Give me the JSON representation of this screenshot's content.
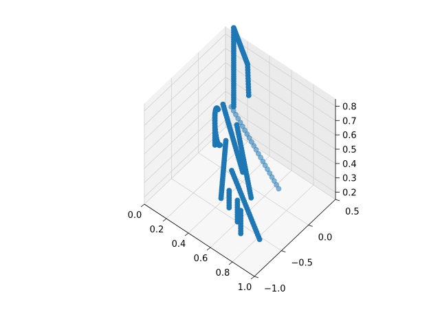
{
  "chart_data": {
    "type": "scatter",
    "projection": "3d",
    "title": "",
    "xlabel": "",
    "ylabel": "",
    "zlabel": "",
    "xlim": [
      0.0,
      1.0
    ],
    "ylim": [
      -1.0,
      0.5
    ],
    "zlim": [
      0.15,
      0.85
    ],
    "x_ticks": [
      "0.0",
      "0.2",
      "0.4",
      "0.6",
      "0.8",
      "1.0"
    ],
    "y_ticks": [
      "−1.0",
      "−0.5",
      "0.0",
      "0.5"
    ],
    "z_ticks": [
      "0.2",
      "0.3",
      "0.4",
      "0.5",
      "0.6",
      "0.7",
      "0.8"
    ],
    "grid": true,
    "marker_color": "#1f77b4",
    "series": [
      {
        "segments": [
          {
            "from": [
              0.05,
              0.55,
              0.85
            ],
            "to": [
              0.25,
              0.4,
              0.75
            ],
            "n": 30
          },
          {
            "from": [
              0.05,
              0.55,
              0.85
            ],
            "to": [
              0.05,
              0.55,
              0.3
            ],
            "n": 35
          },
          {
            "from": [
              0.25,
              0.4,
              0.75
            ],
            "to": [
              0.27,
              0.38,
              0.55
            ],
            "n": 12
          },
          {
            "from": [
              0.2,
              0.1,
              0.3
            ],
            "to": [
              0.5,
              -0.6,
              0.3
            ],
            "n": 30
          },
          {
            "from": [
              0.1,
              0.25,
              0.45
            ],
            "to": [
              0.55,
              -0.3,
              0.4
            ],
            "n": 32
          },
          {
            "from": [
              0.25,
              0.2,
              0.4
            ],
            "to": [
              0.7,
              -0.45,
              0.35
            ],
            "n": 32
          },
          {
            "from": [
              0.4,
              -0.2,
              0.3
            ],
            "to": [
              0.9,
              -0.7,
              0.25
            ],
            "n": 30
          },
          {
            "from": [
              0.15,
              0.0,
              0.5
            ],
            "to": [
              0.15,
              0.0,
              0.28
            ],
            "n": 14
          },
          {
            "from": [
              0.6,
              -0.5,
              0.3
            ],
            "to": [
              0.6,
              -0.5,
              0.15
            ],
            "n": 10
          },
          {
            "from": [
              0.66,
              -0.56,
              0.28
            ],
            "to": [
              0.66,
              -0.56,
              0.12
            ],
            "n": 10
          },
          {
            "from": [
              0.5,
              -0.45,
              0.3
            ],
            "to": [
              0.5,
              -0.45,
              0.18
            ],
            "n": 8
          }
        ],
        "arc": {
          "center": [
            0.12,
            0.12,
            0.35
          ],
          "radius": 0.12,
          "n": 24
        },
        "faint_line": {
          "from": [
            0.2,
            0.2,
            0.5
          ],
          "to": [
            1.0,
            -0.55,
            0.6
          ],
          "n": 22
        }
      }
    ]
  }
}
